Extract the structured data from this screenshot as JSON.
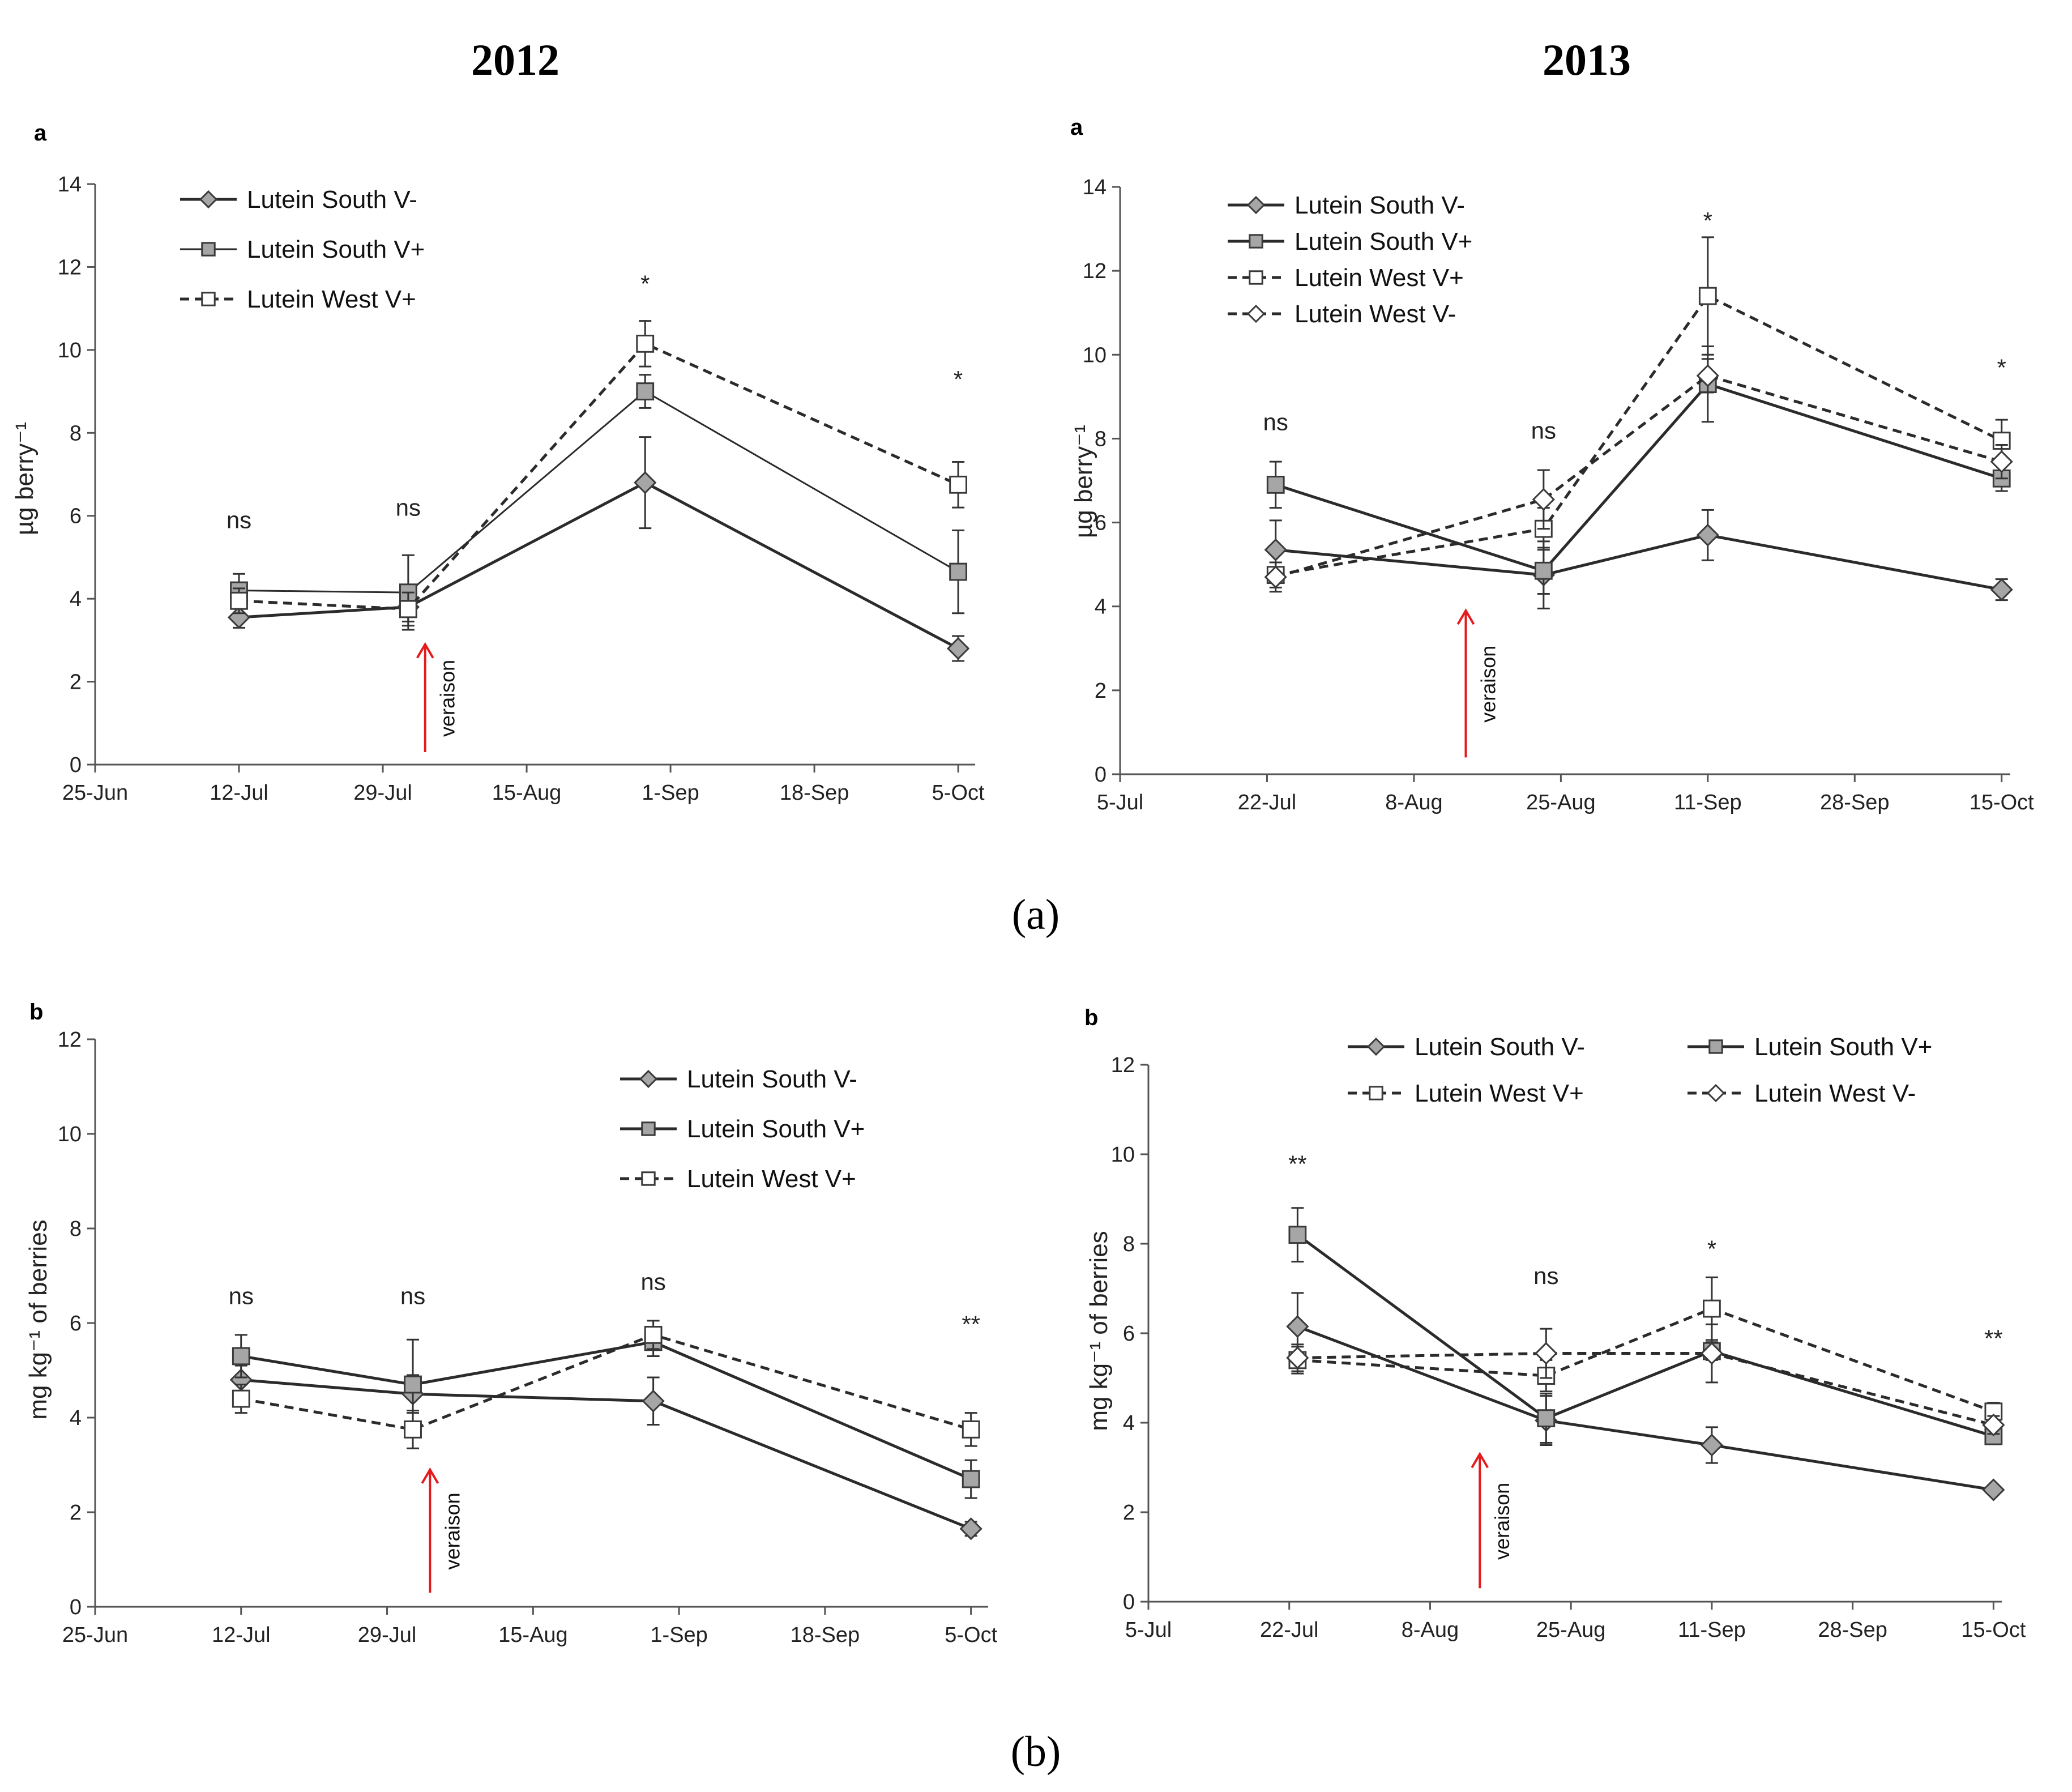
{
  "figure": {
    "col_titles": [
      "2012",
      "2013"
    ],
    "captions": [
      "(a)",
      "(b)"
    ]
  },
  "colors": {
    "axis": "#555555",
    "line": "#2b2b2b",
    "marker_gray": "#a6a6a6",
    "marker_white": "#ffffff",
    "veraison": "#e41a1c"
  },
  "series_styles": {
    "Lutein  South V-": {
      "marker": "diamond",
      "fill": "gray",
      "dash": false,
      "width": 5
    },
    "Lutein South V-": {
      "marker": "diamond",
      "fill": "gray",
      "dash": false,
      "width": 5
    },
    "Lutein South V+": {
      "marker": "square",
      "fill": "gray",
      "dash": false,
      "width": 5
    },
    "Lutein West  V+": {
      "marker": "square",
      "fill": "white",
      "dash": true,
      "width": 5
    },
    "Lutein West  V-": {
      "marker": "diamond",
      "fill": "white",
      "dash": true,
      "width": 5
    }
  },
  "chart_data": [
    {
      "type": "line",
      "panel_letter": "a",
      "year": "2012",
      "ylabel": "µg berry⁻¹",
      "ylim": [
        0,
        14
      ],
      "yticks": [
        0,
        2,
        4,
        6,
        8,
        10,
        12,
        14
      ],
      "xlim_days": [
        0,
        104
      ],
      "xticks": [
        {
          "label": "25-Jun",
          "day": 0
        },
        {
          "label": "12-Jul",
          "day": 17
        },
        {
          "label": "29-Jul",
          "day": 34
        },
        {
          "label": "15-Aug",
          "day": 51
        },
        {
          "label": "1-Sep",
          "day": 68
        },
        {
          "label": "18-Sep",
          "day": 85
        },
        {
          "label": "5-Oct",
          "day": 102
        }
      ],
      "veraison": {
        "label": "veraison",
        "day": 39,
        "y_from": 0.3,
        "y_to": 2.9
      },
      "series": [
        {
          "name": "Lutein  South V-",
          "days": [
            17,
            37,
            65,
            102
          ],
          "values": [
            3.55,
            3.8,
            6.8,
            2.8
          ],
          "errors": [
            0.25,
            0.35,
            1.1,
            0.3
          ]
        },
        {
          "name": "Lutein South V+",
          "days": [
            17,
            37,
            65,
            102
          ],
          "values": [
            4.2,
            4.15,
            9.0,
            4.65
          ],
          "errors": [
            0.4,
            0.9,
            0.4,
            1.0
          ],
          "thin": true
        },
        {
          "name": "Lutein West  V+",
          "days": [
            17,
            37,
            65,
            102
          ],
          "values": [
            3.95,
            3.75,
            10.15,
            6.75
          ],
          "errors": [
            0.3,
            0.4,
            0.55,
            0.55
          ]
        }
      ],
      "legend": {
        "placement": "top-left",
        "entries": [
          "Lutein  South V-",
          "Lutein South V+",
          "Lutein West  V+"
        ]
      },
      "annotations": [
        {
          "text": "ns",
          "day": 17,
          "y": 5.7
        },
        {
          "text": "ns",
          "day": 37,
          "y": 6.0
        },
        {
          "text": "*",
          "day": 65,
          "y": 11.4
        },
        {
          "text": "*",
          "day": 102,
          "y": 9.1
        }
      ]
    },
    {
      "type": "line",
      "panel_letter": "a",
      "year": "2013",
      "ylabel": "µg berry⁻¹",
      "ylim": [
        0,
        14
      ],
      "yticks": [
        0,
        2,
        4,
        6,
        8,
        10,
        12,
        14
      ],
      "xlim_days": [
        0,
        103
      ],
      "xticks": [
        {
          "label": "5-Jul",
          "day": 0
        },
        {
          "label": "22-Jul",
          "day": 17
        },
        {
          "label": "8-Aug",
          "day": 34
        },
        {
          "label": "25-Aug",
          "day": 51
        },
        {
          "label": "11-Sep",
          "day": 68
        },
        {
          "label": "28-Sep",
          "day": 85
        },
        {
          "label": "15-Oct",
          "day": 102
        }
      ],
      "veraison": {
        "label": "veraison",
        "day": 40,
        "y_from": 0.4,
        "y_to": 3.9
      },
      "series": [
        {
          "name": "Lutein South V-",
          "days": [
            18,
            49,
            68,
            102
          ],
          "values": [
            5.35,
            4.75,
            5.7,
            4.4
          ],
          "errors": [
            0.7,
            0.8,
            0.6,
            0.25
          ]
        },
        {
          "name": "Lutein South V+",
          "days": [
            18,
            49,
            68,
            102
          ],
          "values": [
            6.9,
            4.85,
            9.3,
            7.05
          ],
          "errors": [
            0.55,
            0.55,
            0.9,
            0.3
          ]
        },
        {
          "name": "Lutein West  V+",
          "days": [
            18,
            49,
            68,
            102
          ],
          "values": [
            4.75,
            5.85,
            11.4,
            7.95
          ],
          "errors": [
            0.3,
            0.5,
            1.4,
            0.5
          ]
        },
        {
          "name": "Lutein West  V-",
          "days": [
            18,
            49,
            68,
            102
          ],
          "values": [
            4.7,
            6.55,
            9.5,
            7.45
          ],
          "errors": [
            0.35,
            0.7,
            0.4,
            0.4
          ]
        }
      ],
      "legend": {
        "placement": "top-left",
        "entries": [
          "Lutein South V-",
          "Lutein South V+",
          "Lutein West  V+",
          "Lutein West  V-"
        ]
      },
      "annotations": [
        {
          "text": "ns",
          "day": 18,
          "y": 8.2
        },
        {
          "text": "ns",
          "day": 49,
          "y": 8.0
        },
        {
          "text": "*",
          "day": 68,
          "y": 13.0
        },
        {
          "text": "*",
          "day": 102,
          "y": 9.5
        }
      ]
    },
    {
      "type": "line",
      "panel_letter": "b",
      "year": "2012",
      "ylabel": "mg kg⁻¹ of berries",
      "ylim": [
        0,
        12
      ],
      "yticks": [
        0,
        2,
        4,
        6,
        8,
        10,
        12
      ],
      "xlim_days": [
        0,
        104
      ],
      "xticks": [
        {
          "label": "25-Jun",
          "day": 0
        },
        {
          "label": "12-Jul",
          "day": 17
        },
        {
          "label": "29-Jul",
          "day": 34
        },
        {
          "label": "15-Aug",
          "day": 51
        },
        {
          "label": "1-Sep",
          "day": 68
        },
        {
          "label": "18-Sep",
          "day": 85
        },
        {
          "label": "5-Oct",
          "day": 102
        }
      ],
      "veraison": {
        "label": "veraison",
        "day": 39,
        "y_from": 0.3,
        "y_to": 2.9
      },
      "series": [
        {
          "name": "Lutein  South V-",
          "days": [
            17,
            37,
            65,
            102
          ],
          "values": [
            4.8,
            4.5,
            4.35,
            1.65
          ],
          "errors": [
            0.3,
            0.4,
            0.5,
            0.15
          ]
        },
        {
          "name": "Lutein South V+",
          "days": [
            17,
            37,
            65,
            102
          ],
          "values": [
            5.3,
            4.7,
            5.6,
            2.7
          ],
          "errors": [
            0.45,
            0.95,
            0.3,
            0.4
          ]
        },
        {
          "name": "Lutein West  V+",
          "days": [
            17,
            37,
            65,
            102
          ],
          "values": [
            4.4,
            3.75,
            5.75,
            3.75
          ],
          "errors": [
            0.3,
            0.4,
            0.3,
            0.35
          ]
        }
      ],
      "legend": {
        "placement": "top-right",
        "entries": [
          "Lutein  South V-",
          "Lutein South V+",
          "Lutein West  V+"
        ]
      },
      "annotations": [
        {
          "text": "ns",
          "day": 17,
          "y": 6.4
        },
        {
          "text": "ns",
          "day": 37,
          "y": 6.4
        },
        {
          "text": "ns",
          "day": 65,
          "y": 6.7
        },
        {
          "text": "**",
          "day": 102,
          "y": 5.8
        }
      ]
    },
    {
      "type": "line",
      "panel_letter": "b",
      "year": "2013",
      "ylabel": "mg kg⁻¹ of berries",
      "ylim": [
        0,
        12
      ],
      "yticks": [
        0,
        2,
        4,
        6,
        8,
        10,
        12
      ],
      "xlim_days": [
        0,
        103
      ],
      "xticks": [
        {
          "label": "5-Jul",
          "day": 0
        },
        {
          "label": "22-Jul",
          "day": 17
        },
        {
          "label": "8-Aug",
          "day": 34
        },
        {
          "label": "25-Aug",
          "day": 51
        },
        {
          "label": "11-Sep",
          "day": 68
        },
        {
          "label": "28-Sep",
          "day": 85
        },
        {
          "label": "15-Oct",
          "day": 102
        }
      ],
      "veraison": {
        "label": "veraison",
        "day": 40,
        "y_from": 0.3,
        "y_to": 3.3
      },
      "series": [
        {
          "name": "Lutein South V-",
          "days": [
            18,
            48,
            68,
            102
          ],
          "values": [
            6.15,
            4.05,
            3.5,
            2.5
          ],
          "errors": [
            0.75,
            0.55,
            0.4,
            0.1
          ]
        },
        {
          "name": "Lutein South V+",
          "days": [
            18,
            48,
            68,
            102
          ],
          "values": [
            8.2,
            4.1,
            5.6,
            3.7
          ],
          "errors": [
            0.6,
            0.55,
            0.2,
            0.15
          ]
        },
        {
          "name": "Lutein West  V+",
          "days": [
            18,
            48,
            68,
            102
          ],
          "values": [
            5.4,
            5.05,
            6.55,
            4.25
          ],
          "errors": [
            0.3,
            0.35,
            0.7,
            0.2
          ]
        },
        {
          "name": "Lutein West  V-",
          "days": [
            18,
            48,
            68,
            102
          ],
          "values": [
            5.45,
            5.55,
            5.55,
            3.95
          ],
          "errors": [
            0.3,
            0.55,
            0.65,
            0.2
          ]
        }
      ],
      "legend": {
        "placement": "top",
        "entries": [
          "Lutein South V-",
          "Lutein South V+",
          "Lutein West  V+",
          "Lutein West  V-"
        ]
      },
      "annotations": [
        {
          "text": "**",
          "day": 18,
          "y": 9.6
        },
        {
          "text": "ns",
          "day": 48,
          "y": 7.1
        },
        {
          "text": "*",
          "day": 68,
          "y": 7.7
        },
        {
          "text": "**",
          "day": 102,
          "y": 5.7
        }
      ]
    }
  ]
}
